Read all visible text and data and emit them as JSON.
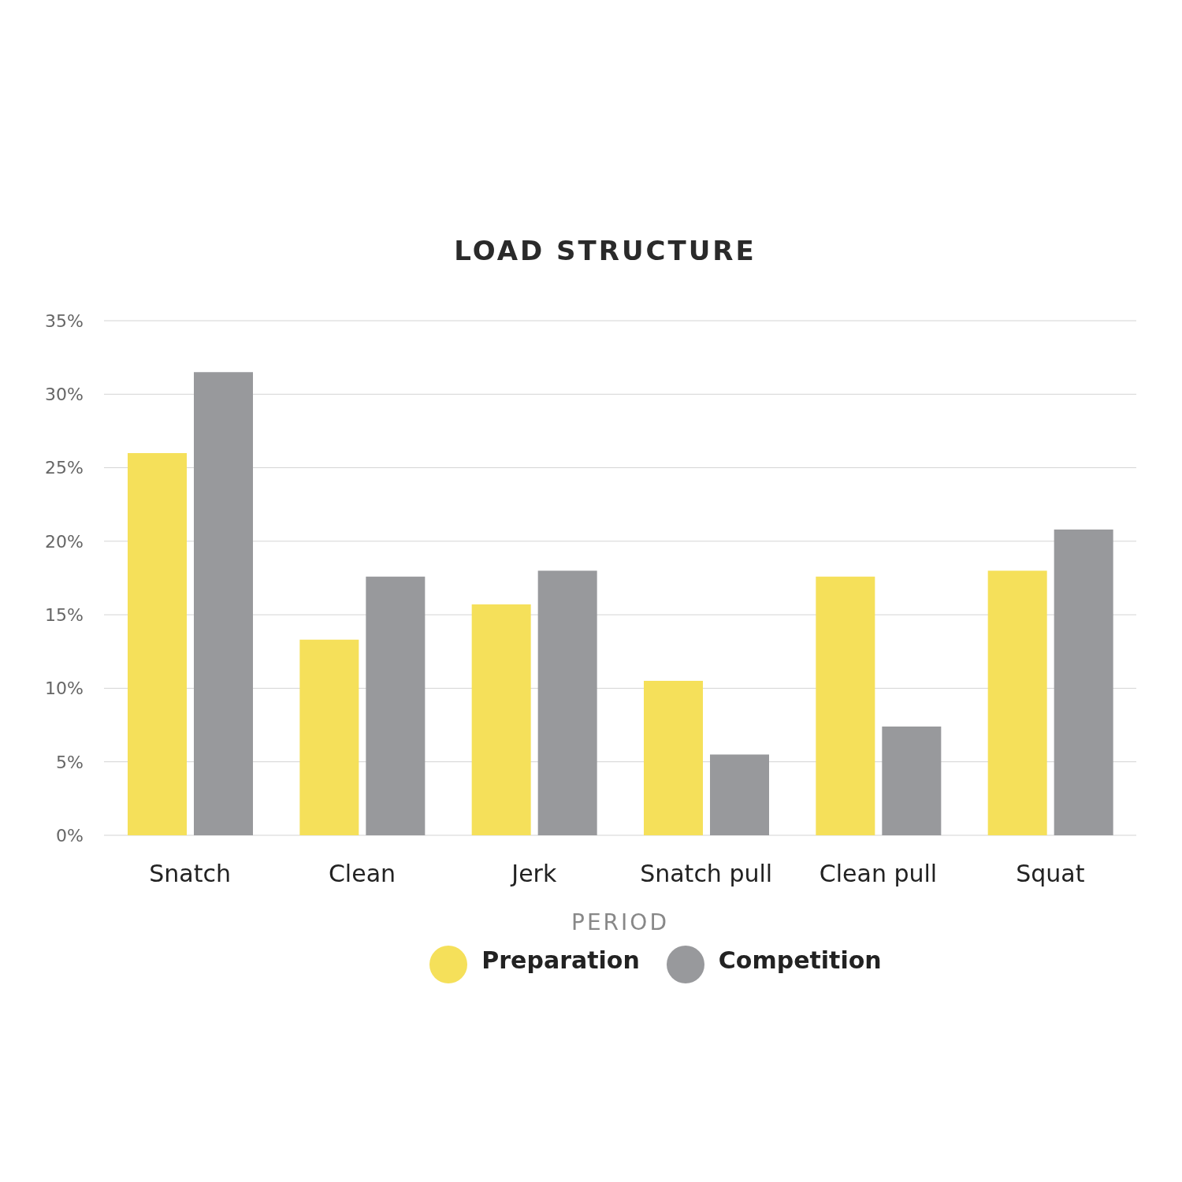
{
  "chart_data": {
    "type": "bar",
    "title": "LOAD STRUCTURE",
    "xlabel": "PERIOD",
    "categories": [
      "Snatch",
      "Clean",
      "Jerk",
      "Snatch pull",
      "Clean pull",
      "Squat"
    ],
    "series": [
      {
        "name": "Preparation",
        "color": "#f5e05a",
        "values": [
          26.0,
          13.3,
          15.7,
          10.5,
          17.6,
          18.0
        ]
      },
      {
        "name": "Competition",
        "color": "#98999c",
        "values": [
          31.5,
          17.6,
          18.0,
          5.5,
          7.4,
          20.8
        ]
      }
    ],
    "ylim": [
      0,
      35
    ],
    "yticks": [
      {
        "value": 0,
        "label": "0%"
      },
      {
        "value": 5,
        "label": "5%"
      },
      {
        "value": 10,
        "label": "10%"
      },
      {
        "value": 15,
        "label": "15%"
      },
      {
        "value": 20,
        "label": "20%"
      },
      {
        "value": 25,
        "label": "25%"
      },
      {
        "value": 30,
        "label": "30%"
      },
      {
        "value": 35,
        "label": "35%"
      }
    ],
    "grid": "y",
    "legend": "bottom"
  }
}
